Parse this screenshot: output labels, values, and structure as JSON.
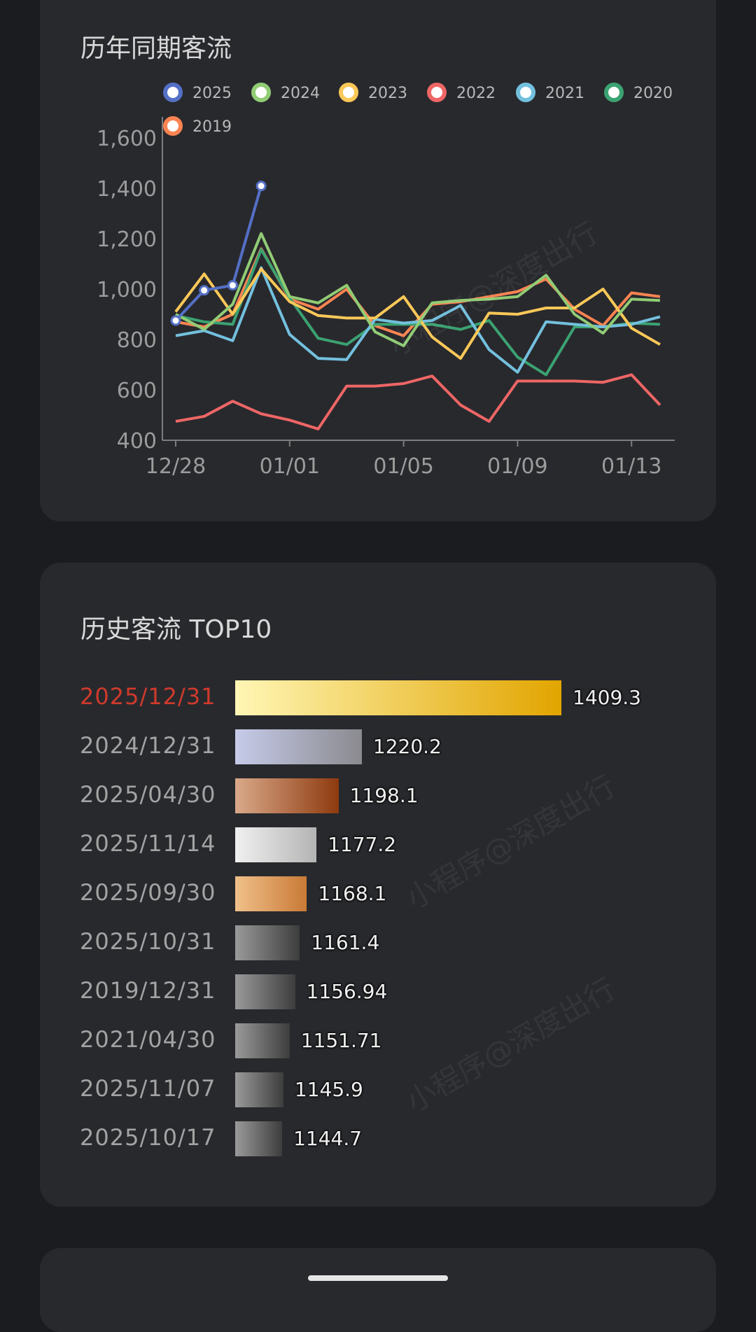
{
  "line_card": {
    "title": "历年同期客流"
  },
  "top10_card": {
    "title": "历史客流 TOP10"
  },
  "watermark": "小程序@深度出行",
  "chart_data": [
    {
      "type": "line",
      "title": "历年同期客流",
      "x": [
        "12/28",
        "12/29",
        "12/30",
        "12/31",
        "01/01",
        "01/02",
        "01/03",
        "01/04",
        "01/05",
        "01/06",
        "01/07",
        "01/08",
        "01/09",
        "01/10",
        "01/11",
        "01/12",
        "01/13",
        "01/14"
      ],
      "x_ticks": [
        "12/28",
        "01/01",
        "01/05",
        "01/09",
        "01/13"
      ],
      "ylim": [
        400,
        1600
      ],
      "y_ticks": [
        400,
        600,
        800,
        1000,
        1200,
        1400,
        1600
      ],
      "legend_position": "top",
      "series": [
        {
          "name": "2025",
          "color": "#5470c6",
          "markers": true,
          "values": [
            875,
            995,
            1015,
            1409.3,
            null,
            null,
            null,
            null,
            null,
            null,
            null,
            null,
            null,
            null,
            null,
            null,
            null,
            null
          ]
        },
        {
          "name": "2024",
          "color": "#91cc75",
          "values": [
            900,
            840,
            940,
            1220.2,
            970,
            945,
            1015,
            830,
            775,
            945,
            955,
            960,
            970,
            1055,
            900,
            825,
            960,
            955
          ]
        },
        {
          "name": "2023",
          "color": "#fac858",
          "values": [
            910,
            1060,
            900,
            1080,
            950,
            895,
            885,
            885,
            970,
            810,
            725,
            905,
            900,
            925,
            925,
            1000,
            845,
            780
          ]
        },
        {
          "name": "2022",
          "color": "#ee6666",
          "values": [
            475,
            495,
            555,
            505,
            480,
            445,
            615,
            615,
            625,
            655,
            540,
            475,
            635,
            635,
            635,
            630,
            660,
            540
          ]
        },
        {
          "name": "2021",
          "color": "#73c0de",
          "values": [
            815,
            835,
            795,
            1085,
            820,
            725,
            720,
            880,
            865,
            875,
            935,
            760,
            670,
            870,
            860,
            850,
            860,
            890
          ]
        },
        {
          "name": "2020",
          "color": "#3ba272",
          "values": [
            895,
            870,
            860,
            1156.94,
            965,
            805,
            780,
            860,
            860,
            860,
            840,
            875,
            730,
            660,
            850,
            850,
            865,
            860
          ]
        },
        {
          "name": "2019",
          "color": "#fc8452",
          "values": [
            870,
            850,
            900,
            1160,
            960,
            920,
            1000,
            855,
            815,
            940,
            950,
            970,
            990,
            1040,
            920,
            855,
            985,
            970
          ]
        }
      ]
    },
    {
      "type": "bar",
      "title": "历史客流 TOP10",
      "orientation": "horizontal",
      "categories": [
        "2025/12/31",
        "2024/12/31",
        "2025/04/30",
        "2025/11/14",
        "2025/09/30",
        "2025/10/31",
        "2019/12/31",
        "2021/04/30",
        "2025/11/07",
        "2025/10/17"
      ],
      "values": [
        1409.3,
        1220.2,
        1198.1,
        1177.2,
        1168.1,
        1161.4,
        1156.94,
        1151.71,
        1145.9,
        1144.7
      ],
      "value_labels": [
        "1409.3",
        "1220.2",
        "1198.1",
        "1177.2",
        "1168.1",
        "1161.4",
        "1156.94",
        "1151.71",
        "1145.9",
        "1144.7"
      ],
      "bar_gradients": [
        [
          "#fff6b5",
          "#e2a500"
        ],
        [
          "#c6cbe9",
          "#8a8a8f"
        ],
        [
          "#d9a98a",
          "#8e3a0e"
        ],
        [
          "#f0f0f0",
          "#b4b4b4"
        ],
        [
          "#f0c08a",
          "#c97a36"
        ],
        [
          "#9a9a9a",
          "#3d3d3d"
        ],
        [
          "#9a9a9a",
          "#3d3d3d"
        ],
        [
          "#9a9a9a",
          "#3d3d3d"
        ],
        [
          "#9a9a9a",
          "#3d3d3d"
        ],
        [
          "#9a9a9a",
          "#3d3d3d"
        ]
      ],
      "highlight_first_color": "#cf3a2c"
    }
  ]
}
